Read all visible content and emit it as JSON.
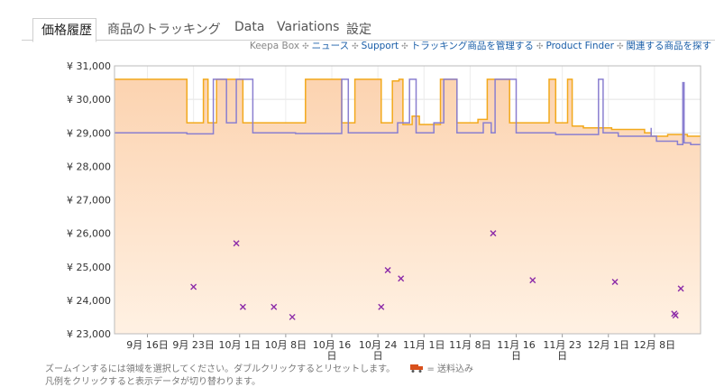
{
  "tabs": [
    {
      "label": "価格履歴",
      "active": true
    },
    {
      "label": "商品のトラッキング",
      "active": false
    },
    {
      "label": "Data",
      "active": false
    },
    {
      "label": "Variations",
      "active": false
    },
    {
      "label": "設定",
      "active": false
    }
  ],
  "links": [
    "Keepa Box",
    "ニュース",
    "Support",
    "トラッキング商品を管理する",
    "Product Finder",
    "関連する商品を探す"
  ],
  "footer": {
    "line1": "ズームインするには領域を選択してください。ダブルクリックするとリセットします。",
    "shipping_legend": "= 送料込み",
    "line2": "凡例をクリックすると表示データが切り替わります。"
  },
  "colors": {
    "amazon": "#f2a91c",
    "new": "#8a7fd0",
    "used": "#8c2ba8",
    "fill": "#fde3c8"
  },
  "chart_data": {
    "type": "line",
    "ylim": [
      23000,
      31000
    ],
    "y_ticks": [
      "¥ 23,000",
      "¥ 24,000",
      "¥ 25,000",
      "¥ 26,000",
      "¥ 27,000",
      "¥ 28,000",
      "¥ 29,000",
      "¥ 30,000",
      "¥ 31,000"
    ],
    "x_domain": [
      0,
      89
    ],
    "x_ticks": [
      {
        "t": 5,
        "label": "9月 16日"
      },
      {
        "t": 12,
        "label": "9月 23日"
      },
      {
        "t": 19,
        "label": "10月 1日"
      },
      {
        "t": 26,
        "label": "10月 8日"
      },
      {
        "t": 33,
        "label": "10月 16",
        "label2": "日"
      },
      {
        "t": 40,
        "label": "10月 24",
        "label2": "日"
      },
      {
        "t": 47,
        "label": "11月 1日"
      },
      {
        "t": 54,
        "label": "11月 8日"
      },
      {
        "t": 61,
        "label": "11月 16",
        "label2": "日"
      },
      {
        "t": 68,
        "label": "11月 23",
        "label2": "日"
      },
      {
        "t": 75,
        "label": "12月 1日"
      },
      {
        "t": 82,
        "label": "12月 8日"
      }
    ],
    "series": [
      {
        "key": "amazon",
        "points": [
          [
            0,
            30600
          ],
          [
            11,
            30600
          ],
          [
            11,
            29300
          ],
          [
            13.5,
            29300
          ],
          [
            13.5,
            30600
          ],
          [
            14.2,
            30600
          ],
          [
            14.2,
            29300
          ],
          [
            15.5,
            29300
          ],
          [
            15.5,
            30600
          ],
          [
            19.5,
            30600
          ],
          [
            19.5,
            29300
          ],
          [
            29,
            29300
          ],
          [
            29,
            30600
          ],
          [
            34.5,
            30600
          ],
          [
            34.5,
            29300
          ],
          [
            36.5,
            29300
          ],
          [
            36.5,
            30600
          ],
          [
            40.5,
            30600
          ],
          [
            40.5,
            29300
          ],
          [
            42.2,
            29300
          ],
          [
            42.2,
            30550
          ],
          [
            43.2,
            30550
          ],
          [
            43.2,
            30600
          ],
          [
            43.8,
            30600
          ],
          [
            43.8,
            29250
          ],
          [
            45.2,
            29250
          ],
          [
            45.2,
            29500
          ],
          [
            46.3,
            29500
          ],
          [
            46.3,
            29250
          ],
          [
            49.5,
            29250
          ],
          [
            49.5,
            30600
          ],
          [
            52,
            30600
          ],
          [
            52,
            29300
          ],
          [
            55.2,
            29300
          ],
          [
            55.2,
            29400
          ],
          [
            56.6,
            29400
          ],
          [
            56.6,
            30600
          ],
          [
            60,
            30600
          ],
          [
            60,
            29300
          ],
          [
            66,
            29300
          ],
          [
            66,
            30600
          ],
          [
            67,
            30600
          ],
          [
            67,
            29300
          ],
          [
            68.8,
            29300
          ],
          [
            68.8,
            30600
          ],
          [
            69.5,
            30600
          ],
          [
            69.5,
            29200
          ],
          [
            71.2,
            29200
          ],
          [
            71.2,
            29150
          ],
          [
            75.5,
            29150
          ],
          [
            75.5,
            29100
          ],
          [
            80.5,
            29100
          ],
          [
            80.5,
            29000
          ],
          [
            81.5,
            29000
          ],
          [
            81.5,
            28900
          ],
          [
            84,
            28900
          ],
          [
            84,
            28950
          ],
          [
            87,
            28950
          ],
          [
            87,
            28900
          ],
          [
            89,
            28900
          ]
        ]
      },
      {
        "key": "new",
        "points": [
          [
            0,
            29000
          ],
          [
            11,
            29000
          ],
          [
            11,
            28970
          ],
          [
            15,
            28970
          ],
          [
            15,
            30600
          ],
          [
            17,
            30600
          ],
          [
            17,
            29300
          ],
          [
            18.5,
            29300
          ],
          [
            18.5,
            30600
          ],
          [
            21,
            30600
          ],
          [
            21,
            29000
          ],
          [
            27.5,
            29000
          ],
          [
            27.5,
            28980
          ],
          [
            34.5,
            28980
          ],
          [
            34.5,
            30600
          ],
          [
            35.5,
            30600
          ],
          [
            35.5,
            29000
          ],
          [
            40.5,
            29000
          ],
          [
            40.5,
            29000
          ],
          [
            43,
            29000
          ],
          [
            43,
            29300
          ],
          [
            44.8,
            29300
          ],
          [
            44.8,
            30600
          ],
          [
            45.8,
            30600
          ],
          [
            45.8,
            29000
          ],
          [
            48.5,
            29000
          ],
          [
            48.5,
            29300
          ],
          [
            50,
            29300
          ],
          [
            50,
            30600
          ],
          [
            52,
            30600
          ],
          [
            52,
            29000
          ],
          [
            56,
            29000
          ],
          [
            56,
            29300
          ],
          [
            57.2,
            29300
          ],
          [
            57.2,
            29000
          ],
          [
            57.8,
            29000
          ],
          [
            57.8,
            30600
          ],
          [
            61,
            30600
          ],
          [
            61,
            29000
          ],
          [
            67,
            29000
          ],
          [
            67,
            28950
          ],
          [
            73.5,
            28950
          ],
          [
            73.5,
            30600
          ],
          [
            74.2,
            30600
          ],
          [
            74.2,
            29000
          ],
          [
            76.5,
            29000
          ],
          [
            76.5,
            28900
          ],
          [
            81.5,
            28900
          ],
          [
            81.5,
            29150
          ],
          [
            81.5,
            28900
          ],
          [
            82.3,
            28900
          ],
          [
            82.3,
            28750
          ],
          [
            85.5,
            28750
          ],
          [
            85.5,
            28650
          ],
          [
            86.3,
            28650
          ],
          [
            86.3,
            30500
          ],
          [
            86.5,
            30500
          ],
          [
            86.5,
            28700
          ],
          [
            87.5,
            28700
          ],
          [
            87.5,
            28650
          ],
          [
            88.5,
            28650
          ],
          [
            88.5,
            28650
          ],
          [
            89,
            28650
          ]
        ]
      },
      {
        "key": "used",
        "marker": "x",
        "points": [
          [
            12,
            24400
          ],
          [
            18.5,
            25700
          ],
          [
            19.5,
            23800
          ],
          [
            24.2,
            23800
          ],
          [
            27,
            23500
          ],
          [
            40.5,
            23800
          ],
          [
            41.5,
            24900
          ],
          [
            43.5,
            24650
          ],
          [
            57.5,
            26000
          ],
          [
            63.5,
            24600
          ],
          [
            76,
            24550
          ],
          [
            85,
            23600
          ],
          [
            85.2,
            23550
          ],
          [
            86,
            24350
          ]
        ]
      }
    ]
  }
}
